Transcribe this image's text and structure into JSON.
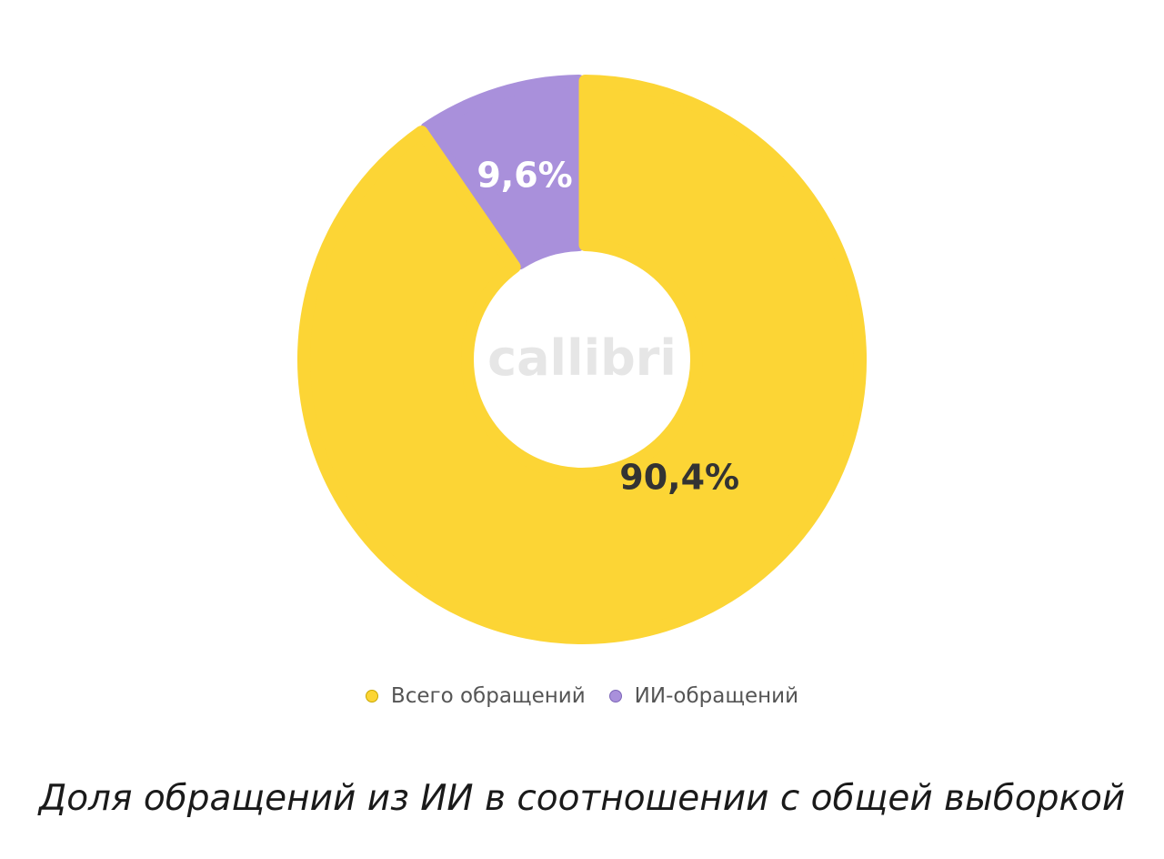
{
  "chart_data": {
    "type": "pie",
    "variant": "donut",
    "caption": "Доля обращений из ИИ в соотношении с общей выборкой",
    "watermark": "callibri",
    "legend_position": "bottom",
    "series": [
      {
        "name": "Всего обращений",
        "value": 90.4,
        "label": "90,4%",
        "color": "#FCD535",
        "label_color": "#333333"
      },
      {
        "name": "ИИ-обращений",
        "value": 9.6,
        "label": "9,6%",
        "color": "#A990DB",
        "label_color": "#FFFFFF"
      }
    ]
  }
}
